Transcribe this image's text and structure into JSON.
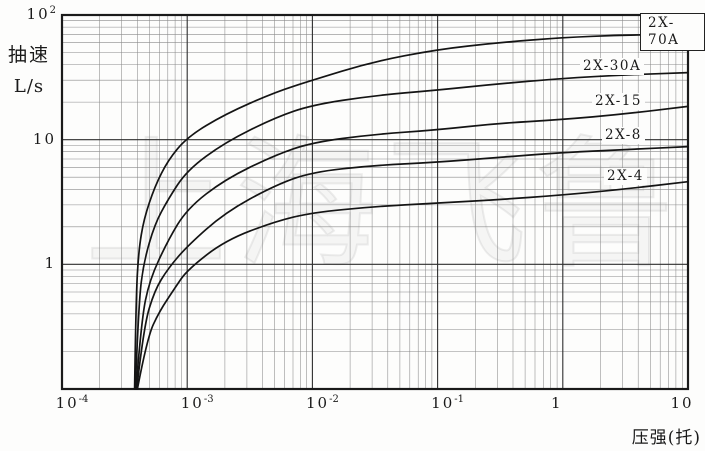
{
  "chart_data": {
    "type": "line",
    "title": "",
    "xlabel": "压强(托)",
    "ylabel_line1": "抽速",
    "ylabel_line2": "L/s",
    "xscale": "log",
    "yscale": "log",
    "xlim": [
      0.0001,
      10
    ],
    "ylim": [
      0.1,
      100
    ],
    "grid": "log minor grid on, both axes",
    "legend_position": "labels next to curves, right side",
    "line_color": "#141414",
    "x_ticks": [
      {
        "base": "10",
        "exp": "-4",
        "value": 0.0001
      },
      {
        "base": "10",
        "exp": "-3",
        "value": 0.001
      },
      {
        "base": "10",
        "exp": "-2",
        "value": 0.01
      },
      {
        "base": "10",
        "exp": "-1",
        "value": 0.1
      },
      {
        "base": "1",
        "exp": "",
        "value": 1
      },
      {
        "base": "10",
        "exp": "",
        "value": 10
      }
    ],
    "y_ticks": [
      {
        "base": "10",
        "exp": "2",
        "value": 100
      },
      {
        "base": "10",
        "exp": "",
        "value": 10
      },
      {
        "base": "1",
        "exp": "",
        "value": 1
      }
    ],
    "series": [
      {
        "name": "2X-70A",
        "boxed": true,
        "points": [
          [
            0.00038,
            0.1
          ],
          [
            0.00039,
            0.55
          ],
          [
            0.00041,
            1.3
          ],
          [
            0.00045,
            2.3
          ],
          [
            0.00055,
            4.2
          ],
          [
            0.0007,
            6.8
          ],
          [
            0.001,
            10.5
          ],
          [
            0.002,
            16
          ],
          [
            0.005,
            24
          ],
          [
            0.01,
            30
          ],
          [
            0.03,
            42
          ],
          [
            0.1,
            53
          ],
          [
            0.3,
            60
          ],
          [
            1,
            66
          ],
          [
            3,
            69
          ],
          [
            10,
            70
          ]
        ]
      },
      {
        "name": "2X-30A",
        "boxed": false,
        "points": [
          [
            0.000385,
            0.1
          ],
          [
            0.00041,
            0.5
          ],
          [
            0.00045,
            1.05
          ],
          [
            0.00055,
            2.1
          ],
          [
            0.0007,
            3.3
          ],
          [
            0.001,
            5.7
          ],
          [
            0.002,
            9.5
          ],
          [
            0.005,
            15
          ],
          [
            0.01,
            19
          ],
          [
            0.03,
            22.5
          ],
          [
            0.1,
            25
          ],
          [
            0.3,
            28
          ],
          [
            1,
            31
          ],
          [
            3,
            33
          ],
          [
            10,
            34.5
          ]
        ]
      },
      {
        "name": "2X-15",
        "boxed": false,
        "points": [
          [
            0.00039,
            0.1
          ],
          [
            0.00043,
            0.35
          ],
          [
            0.0005,
            0.75
          ],
          [
            0.0007,
            1.55
          ],
          [
            0.001,
            2.8
          ],
          [
            0.002,
            4.8
          ],
          [
            0.005,
            7.5
          ],
          [
            0.01,
            9.5
          ],
          [
            0.03,
            11
          ],
          [
            0.1,
            12
          ],
          [
            0.3,
            13.5
          ],
          [
            1,
            14.5
          ],
          [
            3,
            16
          ],
          [
            10,
            18.5
          ]
        ]
      },
      {
        "name": "2X-8",
        "boxed": false,
        "points": [
          [
            0.000395,
            0.1
          ],
          [
            0.00045,
            0.32
          ],
          [
            0.00055,
            0.62
          ],
          [
            0.0007,
            0.92
          ],
          [
            0.001,
            1.4
          ],
          [
            0.002,
            2.6
          ],
          [
            0.005,
            4.3
          ],
          [
            0.01,
            5.5
          ],
          [
            0.03,
            6.2
          ],
          [
            0.1,
            6.6
          ],
          [
            0.3,
            7.2
          ],
          [
            1,
            7.9
          ],
          [
            3,
            8.3
          ],
          [
            10,
            8.8
          ]
        ]
      },
      {
        "name": "2X-4",
        "boxed": false,
        "points": [
          [
            0.0004,
            0.1
          ],
          [
            0.00048,
            0.26
          ],
          [
            0.0006,
            0.42
          ],
          [
            0.0008,
            0.65
          ],
          [
            0.001,
            0.9
          ],
          [
            0.002,
            1.55
          ],
          [
            0.005,
            2.2
          ],
          [
            0.01,
            2.6
          ],
          [
            0.03,
            2.9
          ],
          [
            0.1,
            3.1
          ],
          [
            0.3,
            3.3
          ],
          [
            1,
            3.6
          ],
          [
            3,
            4.0
          ],
          [
            10,
            4.6
          ]
        ]
      }
    ],
    "watermark": "上海飞鲁"
  }
}
